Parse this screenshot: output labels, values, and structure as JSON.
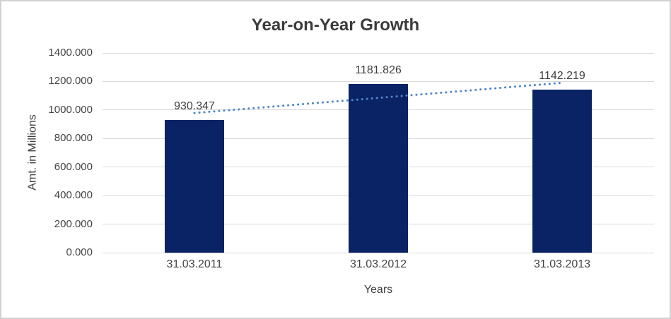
{
  "chart_data": {
    "type": "bar",
    "title": "Year-on-Year Growth",
    "categories": [
      "31.03.2011",
      "31.03.2012",
      "31.03.2013"
    ],
    "values": [
      930.347,
      1181.826,
      1142.219
    ],
    "data_labels": [
      "930.347",
      "1181.826",
      "1142.219"
    ],
    "xlabel": "Years",
    "ylabel": "Amt. in Millions",
    "ylim": [
      0,
      1400
    ],
    "ytick_step": 200,
    "ytick_labels": [
      "0.000",
      "200.000",
      "400.000",
      "600.000",
      "800.000",
      "1000.000",
      "1200.000",
      "1400.000"
    ],
    "grid": true,
    "legend": false,
    "trendline": {
      "type": "linear",
      "style": "dotted",
      "endpoint_values": [
        978.861,
        1190.733
      ]
    },
    "colors": {
      "bar": "#0A2365",
      "trendline": "#4E86C8",
      "gridline": "#D9D9D9",
      "title_text": "#3B3B3B",
      "axis_text": "#444444",
      "label_text": "#3F3F3F",
      "border": "#D2D2D2"
    }
  }
}
